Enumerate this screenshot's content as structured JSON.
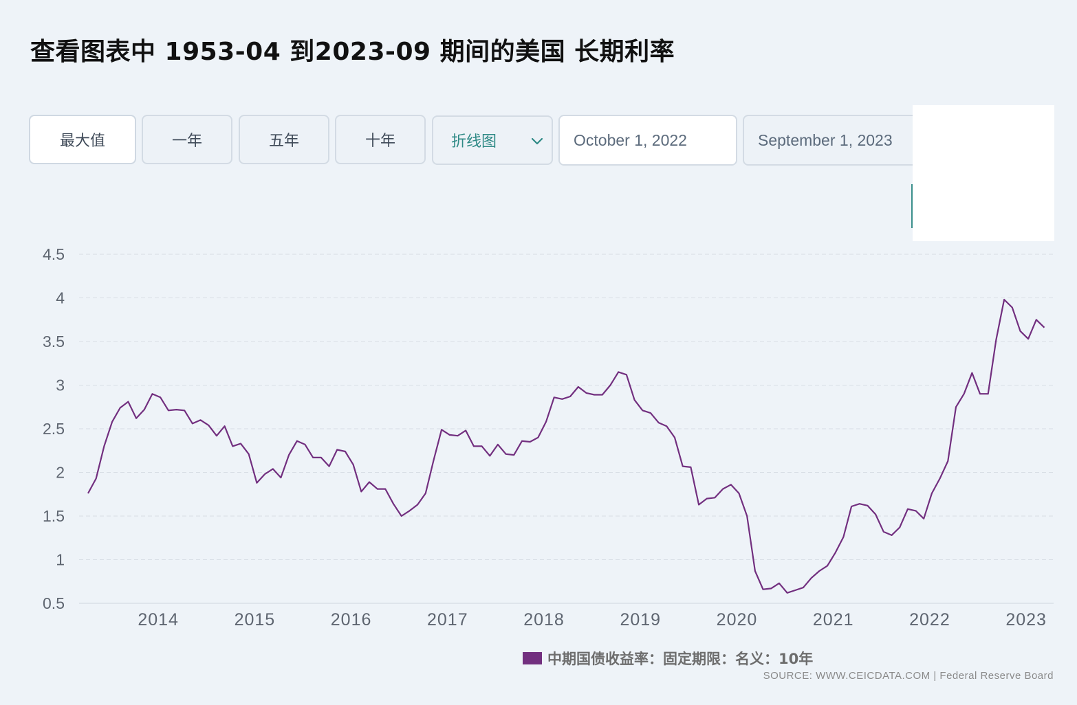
{
  "title": "查看图表中 1953-04 到2023-09 期间的美国 长期利率",
  "range_buttons": [
    "最大值",
    "一年",
    "五年",
    "十年"
  ],
  "chart_type_select": "折线图",
  "date_start": "October 1, 2022",
  "date_end": "September 1, 2023",
  "source": "SOURCE: WWW.CEICDATA.COM | Federal Reserve Board",
  "colors": {
    "series": "#722f7f",
    "accent": "#2f8a86"
  },
  "chart_data": {
    "type": "line",
    "title": "",
    "xlabel": "",
    "ylabel": "",
    "x_start": "2013-04",
    "x_step": "monthly",
    "x_ticks": [
      "2014",
      "2015",
      "2016",
      "2017",
      "2018",
      "2019",
      "2020",
      "2021",
      "2022",
      "2023"
    ],
    "y_ticks": [
      0.5,
      1,
      1.5,
      2,
      2.5,
      3,
      3.5,
      4,
      4.5
    ],
    "ylim": [
      0.5,
      4.5
    ],
    "grid": true,
    "legend": "bottom",
    "series": [
      {
        "name": "中期国债收益率：固定期限：名义：10年",
        "values": [
          1.76,
          1.93,
          2.3,
          2.58,
          2.74,
          2.81,
          2.62,
          2.72,
          2.9,
          2.86,
          2.71,
          2.72,
          2.71,
          2.56,
          2.6,
          2.54,
          2.42,
          2.53,
          2.3,
          2.33,
          2.21,
          1.88,
          1.98,
          2.04,
          1.94,
          2.2,
          2.36,
          2.32,
          2.17,
          2.17,
          2.07,
          2.26,
          2.24,
          2.09,
          1.78,
          1.89,
          1.81,
          1.81,
          1.64,
          1.5,
          1.56,
          1.63,
          1.76,
          2.14,
          2.49,
          2.43,
          2.42,
          2.48,
          2.3,
          2.3,
          2.19,
          2.32,
          2.21,
          2.2,
          2.36,
          2.35,
          2.4,
          2.58,
          2.86,
          2.84,
          2.87,
          2.98,
          2.91,
          2.89,
          2.89,
          3.0,
          3.15,
          3.12,
          2.83,
          2.71,
          2.68,
          2.57,
          2.53,
          2.4,
          2.07,
          2.06,
          1.63,
          1.7,
          1.71,
          1.81,
          1.86,
          1.76,
          1.5,
          0.87,
          0.66,
          0.67,
          0.73,
          0.62,
          0.65,
          0.68,
          0.79,
          0.87,
          0.93,
          1.08,
          1.26,
          1.61,
          1.64,
          1.62,
          1.52,
          1.32,
          1.28,
          1.37,
          1.58,
          1.56,
          1.47,
          1.76,
          1.93,
          2.13,
          2.75,
          2.9,
          3.14,
          2.9,
          2.9,
          3.52,
          3.98,
          3.89,
          3.62,
          3.53,
          3.75,
          3.66
        ]
      }
    ]
  }
}
